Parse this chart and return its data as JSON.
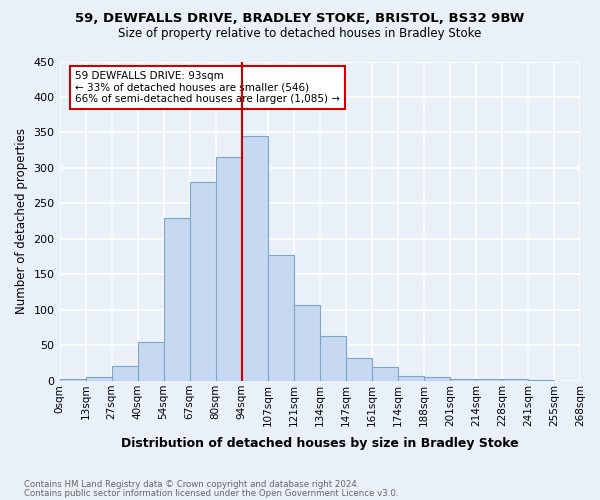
{
  "title1": "59, DEWFALLS DRIVE, BRADLEY STOKE, BRISTOL, BS32 9BW",
  "title2": "Size of property relative to detached houses in Bradley Stoke",
  "xlabel": "Distribution of detached houses by size in Bradley Stoke",
  "ylabel": "Number of detached properties",
  "footnote1": "Contains HM Land Registry data © Crown copyright and database right 2024.",
  "footnote2": "Contains public sector information licensed under the Open Government Licence v3.0.",
  "annotation_line1": "59 DEWFALLS DRIVE: 93sqm",
  "annotation_line2": "← 33% of detached houses are smaller (546)",
  "annotation_line3": "66% of semi-detached houses are larger (1,085) →",
  "bin_labels": [
    "0sqm",
    "13sqm",
    "27sqm",
    "40sqm",
    "54sqm",
    "67sqm",
    "80sqm",
    "94sqm",
    "107sqm",
    "121sqm",
    "134sqm",
    "147sqm",
    "161sqm",
    "174sqm",
    "188sqm",
    "201sqm",
    "214sqm",
    "228sqm",
    "241sqm",
    "255sqm",
    "268sqm"
  ],
  "counts": [
    3,
    6,
    21,
    55,
    230,
    280,
    315,
    345,
    178,
    107,
    63,
    32,
    19,
    7,
    5,
    3,
    3,
    3,
    2
  ],
  "bar_color": "#c6d9f0",
  "bar_edge_color": "#7aa6cc",
  "vline_color": "#cc0000",
  "vline_x": 7.0,
  "ylim": [
    0,
    450
  ],
  "yticks": [
    0,
    50,
    100,
    150,
    200,
    250,
    300,
    350,
    400,
    450
  ],
  "bg_color": "#eaf0f8",
  "fig_bg_color": "#eaf0f8",
  "annotation_box_facecolor": "#ffffff",
  "annotation_box_edgecolor": "#cc0000",
  "grid_color": "#ffffff",
  "footnote_color": "#666666"
}
